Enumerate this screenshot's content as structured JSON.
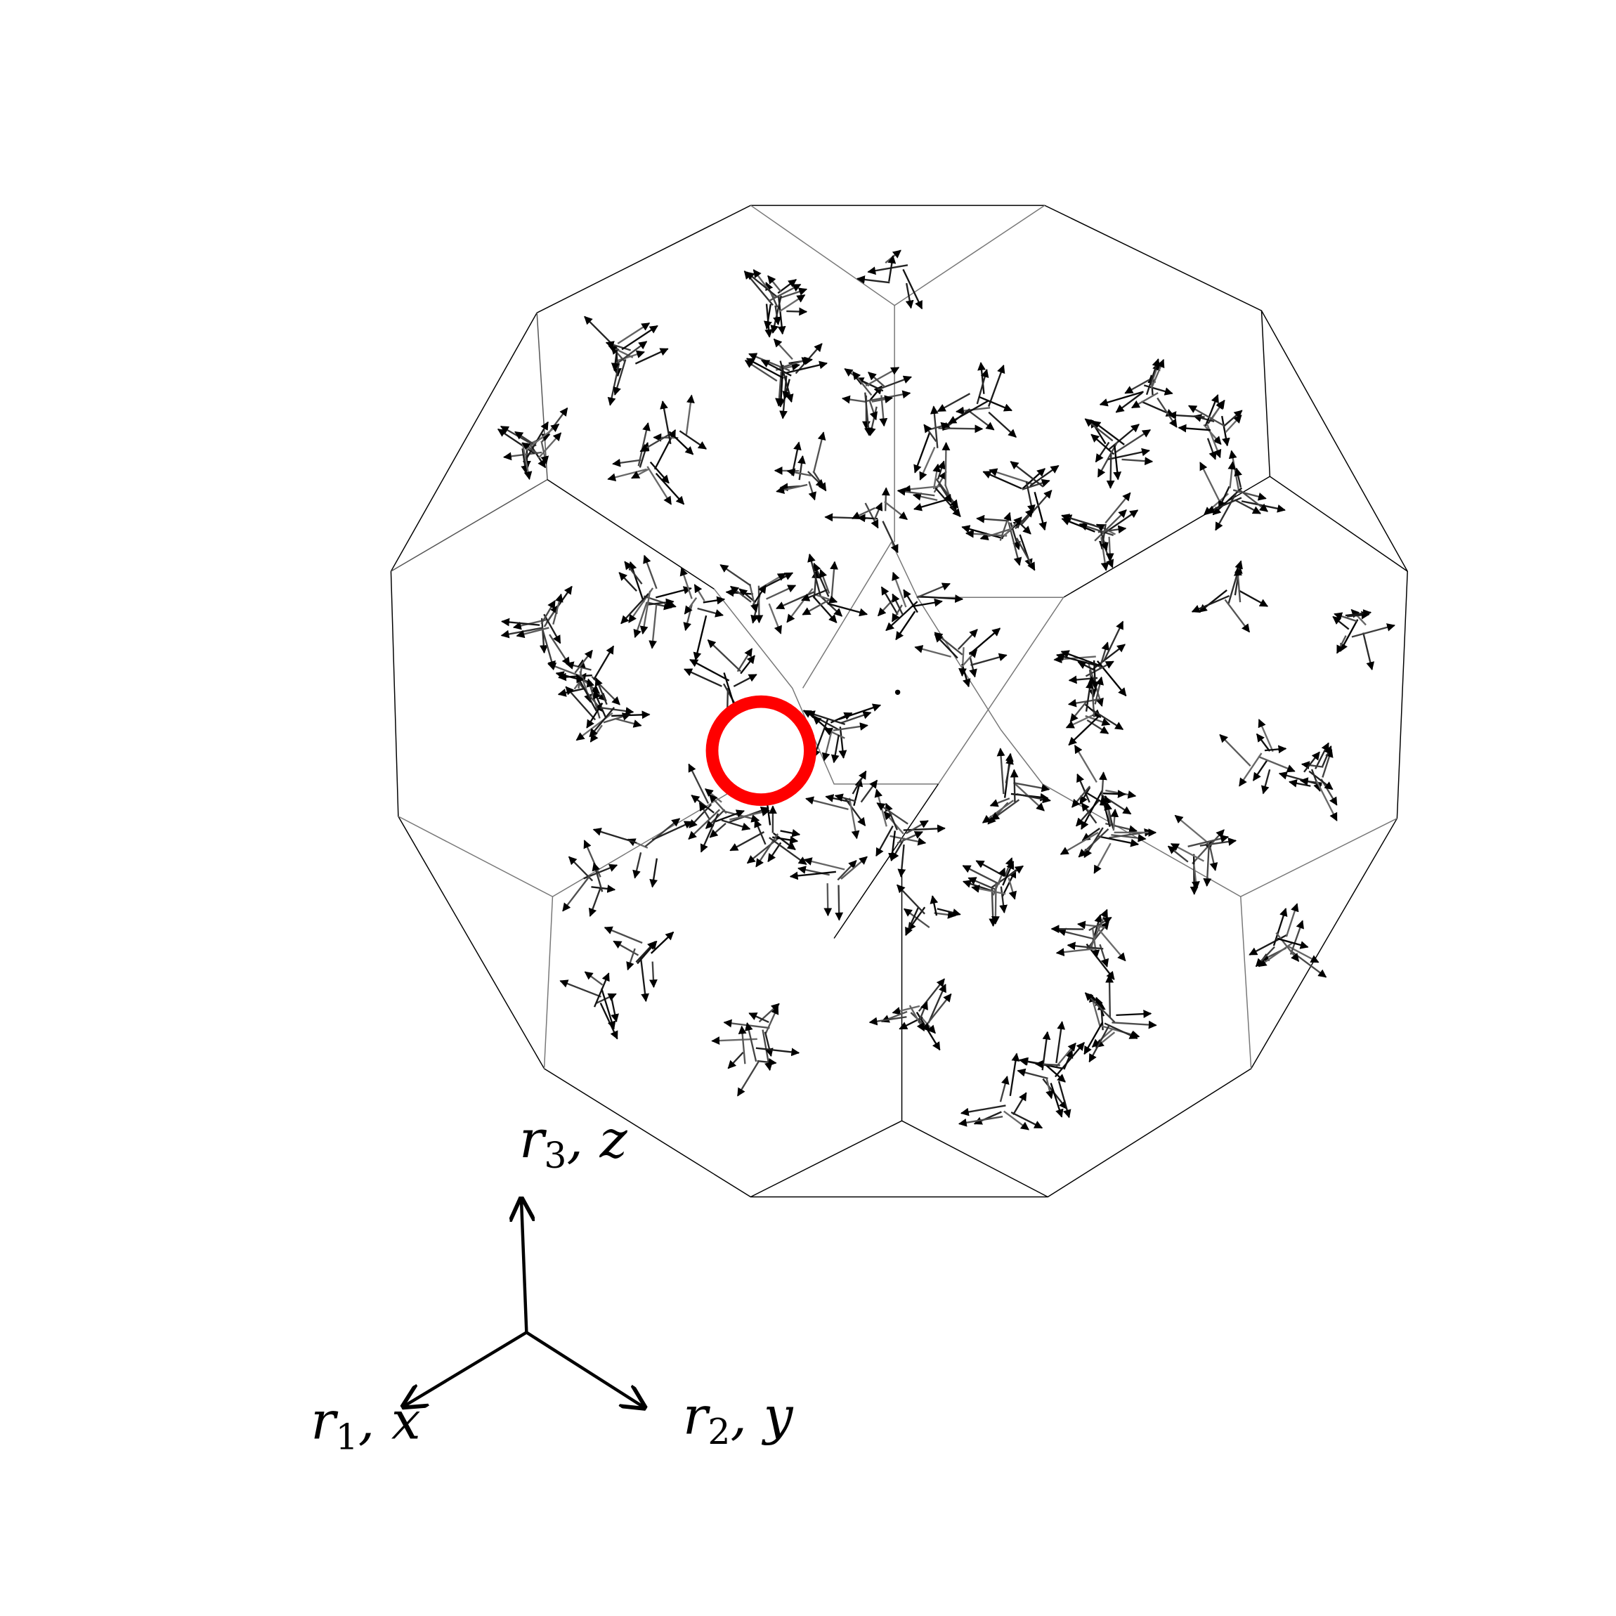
{
  "axes": {
    "z": {
      "base": "r",
      "sub": "3",
      "rest": ", z"
    },
    "x": {
      "base": "r",
      "sub": "1",
      "rest": ", x"
    },
    "y": {
      "base": "r",
      "sub": "2",
      "rest": ", y"
    }
  }
}
